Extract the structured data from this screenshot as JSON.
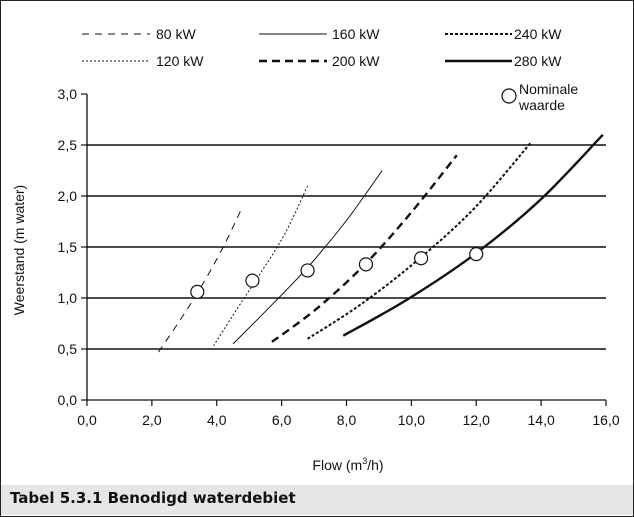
{
  "caption": "Tabel 5.3.1  Benodigd waterdebiet",
  "chart_data": {
    "type": "line",
    "title": "",
    "xlabel_main": "Flow (m",
    "xlabel_sup": "3",
    "xlabel_end": "/h)",
    "ylabel": "Weerstand (m water)",
    "xlim": [
      0,
      16
    ],
    "ylim": [
      0,
      3
    ],
    "x_ticks": [
      "0,0",
      "2,0",
      "4,0",
      "6,0",
      "8,0",
      "10,0",
      "12,0",
      "14,0",
      "16,0"
    ],
    "y_ticks": [
      "0,0",
      "0,5",
      "1,0",
      "1,5",
      "2,0",
      "2,5",
      "3,0"
    ],
    "grid": "horizontal lines at 0.5, 1.0, 1.5, 2.0, 2.5",
    "legend_placement": "top",
    "series": [
      {
        "name": "80 kW",
        "style": "dashed-thin",
        "x": [
          2.2,
          2.8,
          3.5,
          4.2,
          4.8
        ],
        "y": [
          0.47,
          0.75,
          1.1,
          1.5,
          1.9
        ]
      },
      {
        "name": "120 kW",
        "style": "dotted",
        "x": [
          3.9,
          4.6,
          5.3,
          6.1,
          6.8
        ],
        "y": [
          0.53,
          0.88,
          1.22,
          1.63,
          2.1
        ]
      },
      {
        "name": "160 kW",
        "style": "solid-thin",
        "x": [
          4.5,
          5.6,
          6.8,
          8.0,
          9.1
        ],
        "y": [
          0.55,
          0.9,
          1.3,
          1.76,
          2.25
        ]
      },
      {
        "name": "200 kW",
        "style": "dashed-thick",
        "x": [
          5.7,
          7.1,
          8.6,
          10.0,
          11.4
        ],
        "y": [
          0.57,
          0.9,
          1.34,
          1.84,
          2.4
        ]
      },
      {
        "name": "240 kW",
        "style": "dotted-thick",
        "x": [
          6.8,
          8.5,
          10.3,
          12.0,
          13.7
        ],
        "y": [
          0.6,
          0.95,
          1.4,
          1.9,
          2.53
        ]
      },
      {
        "name": "280 kW",
        "style": "solid-thick",
        "x": [
          7.9,
          9.9,
          12.0,
          14.0,
          15.9
        ],
        "y": [
          0.63,
          0.99,
          1.44,
          1.97,
          2.6
        ]
      }
    ],
    "nominal_points": {
      "label_line1": "Nominale",
      "label_line2": "waarde",
      "points": [
        {
          "x": 3.4,
          "y": 1.06
        },
        {
          "x": 5.1,
          "y": 1.17
        },
        {
          "x": 6.8,
          "y": 1.27
        },
        {
          "x": 8.6,
          "y": 1.33
        },
        {
          "x": 10.3,
          "y": 1.39
        },
        {
          "x": 12.0,
          "y": 1.43
        }
      ]
    },
    "colors": {
      "lines": "#111111",
      "caption_bg": "#e6e6e6"
    }
  }
}
